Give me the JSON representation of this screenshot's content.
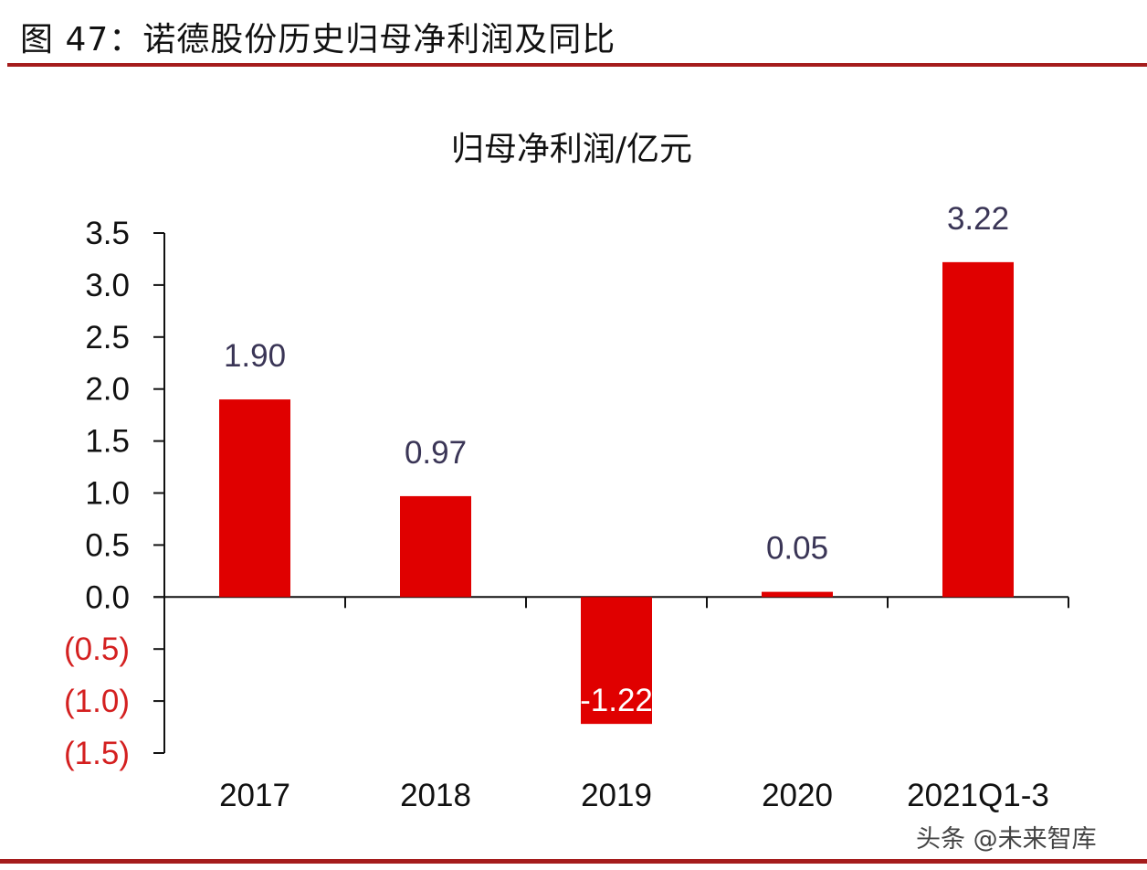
{
  "figure": {
    "title": "图 47：诺德股份历史归母净利润及同比",
    "watermark": "头条 @未来智库"
  },
  "colors": {
    "bar": "#e00000",
    "rule": "#a51c1c",
    "negative_tick": "#d42020",
    "data_label": "#3a3556"
  },
  "chart_data": {
    "type": "bar",
    "title": "归母净利润/亿元",
    "xlabel": "",
    "ylabel": "",
    "categories": [
      "2017",
      "2018",
      "2019",
      "2020",
      "2021Q1-3"
    ],
    "values": [
      1.9,
      0.97,
      -1.22,
      0.05,
      3.22
    ],
    "data_labels": [
      "1.90",
      "0.97",
      "-1.22",
      "0.05",
      "3.22"
    ],
    "ylim": [
      -1.5,
      3.5
    ],
    "yticks": [
      3.5,
      3.0,
      2.5,
      2.0,
      1.5,
      1.0,
      0.5,
      0.0,
      -0.5,
      -1.0,
      -1.5
    ],
    "ytick_labels": [
      "3.5",
      "3.0",
      "2.5",
      "2.0",
      "1.5",
      "1.0",
      "0.5",
      "0.0",
      "(0.5)",
      "(1.0)",
      "(1.5)"
    ],
    "grid": false,
    "legend": "none"
  }
}
